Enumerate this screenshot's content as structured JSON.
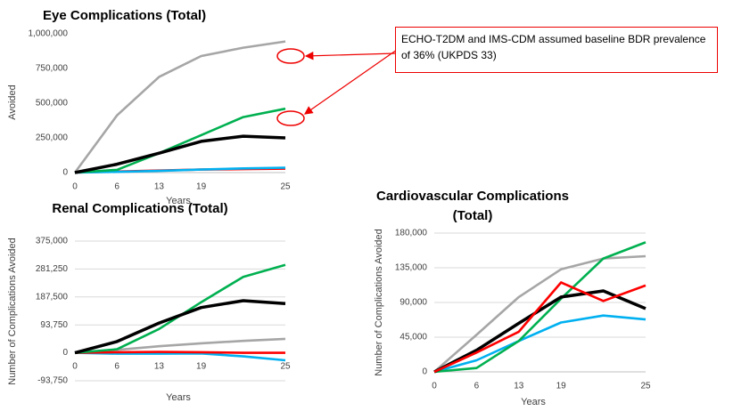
{
  "chart_data": [
    {
      "type": "line",
      "title": "Eye Complications (Total)",
      "y_label": "Avoided",
      "x_label": "Years",
      "categories": [
        "0",
        "6",
        "13",
        "19",
        null,
        "25"
      ],
      "ylim": [
        0,
        1000000
      ],
      "yticks": [
        0,
        {
          "value": 250000,
          "label": "250,000"
        },
        {
          "value": 500000,
          "label": "500,000"
        },
        {
          "value": 750000,
          "label": "750,000"
        },
        {
          "value": 1000000,
          "label": "1,000,000"
        }
      ],
      "grid": false,
      "annotation": "ECHO-T2DM and IMS-CDM assumed baseline BDR prevalence of 36% (UKPDS 33)",
      "series": [
        {
          "color": "#a6a6a6",
          "values": [
            0,
            412000,
            690000,
            840000,
            900000,
            945000
          ]
        },
        {
          "color": "#ff0000",
          "values": [
            0,
            8000,
            15000,
            22000,
            25000,
            28000
          ]
        },
        {
          "color": "#00b0f0",
          "values": [
            0,
            5000,
            12000,
            22000,
            30000,
            35000
          ]
        },
        {
          "color": "#00b050",
          "values": [
            0,
            20000,
            140000,
            270000,
            400000,
            460000
          ]
        },
        {
          "color": "#000000",
          "values": [
            0,
            60000,
            140000,
            225000,
            262000,
            250000
          ]
        }
      ]
    },
    {
      "type": "line",
      "title": "Renal Complications (Total)",
      "y_label": "Number of Complications Avoided",
      "x_label": "Years",
      "categories": [
        "0",
        "6",
        "13",
        "19",
        null,
        "25"
      ],
      "ylim": [
        -93750,
        375000
      ],
      "yticks": [
        {
          "value": -93750,
          "label": "-93,750"
        },
        0,
        {
          "value": 93750,
          "label": "93,750"
        },
        {
          "value": 187500,
          "label": "187,500"
        },
        {
          "value": 281250,
          "label": "281,250"
        },
        {
          "value": 375000,
          "label": "375,000"
        }
      ],
      "grid": true,
      "series": [
        {
          "color": "#a6a6a6",
          "values": [
            0,
            10000,
            22000,
            32000,
            40000,
            47000
          ]
        },
        {
          "color": "#00b0f0",
          "values": [
            0,
            -3000,
            -3000,
            -2000,
            -12000,
            -25000
          ]
        },
        {
          "color": "#ff0000",
          "values": [
            0,
            2000,
            3000,
            2000,
            0,
            0
          ]
        },
        {
          "color": "#00b050",
          "values": [
            0,
            12000,
            80000,
            170000,
            255000,
            295000
          ]
        },
        {
          "color": "#000000",
          "values": [
            0,
            38000,
            100000,
            152000,
            175000,
            165000
          ]
        }
      ]
    },
    {
      "type": "line",
      "title": "Cardiovascular Complications (Total)",
      "y_label": "Number of Complications Avoided",
      "x_label": "Years",
      "categories": [
        "0",
        "6",
        "13",
        "19",
        null,
        "25"
      ],
      "ylim": [
        0,
        180000
      ],
      "yticks": [
        0,
        {
          "value": 45000,
          "label": "45,000"
        },
        {
          "value": 90000,
          "label": "90,000"
        },
        {
          "value": 135000,
          "label": "135,000"
        },
        {
          "value": 180000,
          "label": "180,000"
        }
      ],
      "grid": true,
      "series": [
        {
          "color": "#a6a6a6",
          "values": [
            0,
            48000,
            97000,
            133000,
            147000,
            150000
          ]
        },
        {
          "color": "#00b0f0",
          "values": [
            0,
            15000,
            40000,
            64000,
            73000,
            68000
          ]
        },
        {
          "color": "#00b050",
          "values": [
            0,
            5000,
            40000,
            95000,
            147000,
            168000
          ]
        },
        {
          "color": "#000000",
          "values": [
            0,
            28000,
            63000,
            97000,
            105000,
            82000
          ]
        },
        {
          "color": "#ff0000",
          "values": [
            0,
            25000,
            52000,
            116000,
            92000,
            112000
          ]
        }
      ]
    }
  ]
}
